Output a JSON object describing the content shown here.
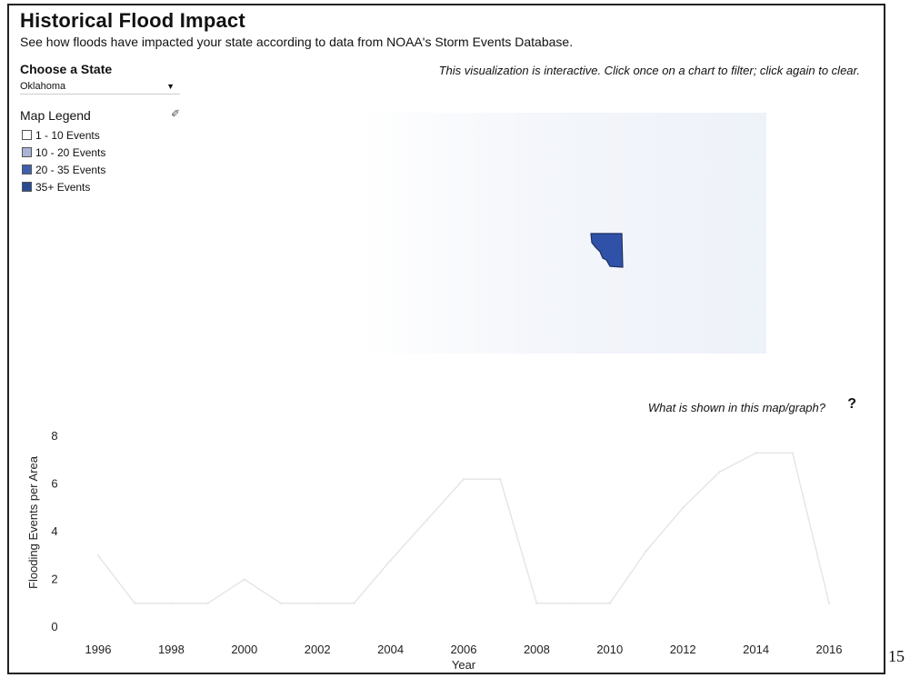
{
  "header": {
    "title": "Historical Flood Impact",
    "subtitle": "See how floods have impacted your state according to data from NOAA's Storm Events Database."
  },
  "state_picker": {
    "label": "Choose a State",
    "selected": "Oklahoma"
  },
  "interactive_note": "This visualization is interactive. Click once on a chart to filter; click again to clear.",
  "legend": {
    "title": "Map Legend",
    "edit_icon": "pencil-icon",
    "items": [
      {
        "label": "1 - 10 Events",
        "color": "#ffffff"
      },
      {
        "label": "10 - 20 Events",
        "color": "#aab4d8"
      },
      {
        "label": "20 - 35 Events",
        "color": "#3f5fae"
      },
      {
        "label": "35+ Events",
        "color": "#2b4a94"
      }
    ]
  },
  "map": {
    "highlight_color": "#2f52a8"
  },
  "help": {
    "text": "What is shown in this map/graph?",
    "icon": "?"
  },
  "chart_data": {
    "type": "line",
    "x": [
      1996,
      1997,
      1998,
      1999,
      2000,
      2001,
      2002,
      2003,
      2004,
      2005,
      2006,
      2007,
      2008,
      2009,
      2010,
      2011,
      2012,
      2013,
      2014,
      2015,
      2016
    ],
    "series": [
      {
        "values": [
          3,
          1,
          1,
          1,
          2,
          1,
          1,
          1,
          2.8,
          4.5,
          6.2,
          6.2,
          1,
          1,
          1,
          3.2,
          5,
          6.5,
          7.3,
          7.3,
          1
        ]
      }
    ],
    "x_tick_labels": [
      "1996",
      "1998",
      "2000",
      "2002",
      "2004",
      "2006",
      "2008",
      "2010",
      "2012",
      "2014",
      "2016"
    ],
    "y_tick_labels": [
      "0",
      "2",
      "4",
      "6",
      "8"
    ],
    "ylim": [
      0,
      8
    ],
    "xlabel": "Year",
    "ylabel": "Flooding Events per Area",
    "line_color": "#e6e6e6"
  },
  "page_number": "15"
}
